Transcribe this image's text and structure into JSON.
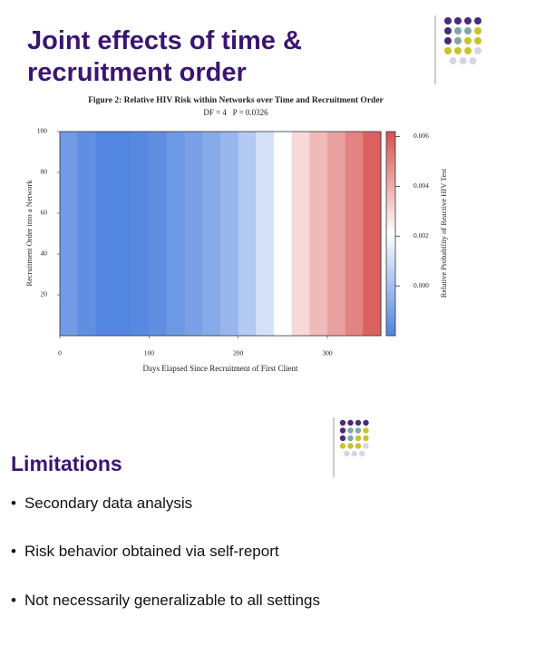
{
  "header": {
    "title": "Joint effects of time & recruitment order"
  },
  "chart_data": {
    "type": "heatmap",
    "title": "Figure 2: Relative HIV Risk within Networks over Time and Recruitment Order",
    "subtitle": "DF = 4   P = 0.0326",
    "x_label": "Days Elapsed Since Recruitment of First Client",
    "y_label": "Recruitment Order into a Network",
    "colorbar_label": "Relative Probability of Reactive HIV Test",
    "x": [
      10,
      30,
      50,
      70,
      90,
      110,
      130,
      150,
      170,
      190,
      210,
      230,
      250,
      270,
      290,
      310,
      330,
      350
    ],
    "values": [
      -0.0012,
      -0.0016,
      -0.0019,
      -0.0019,
      -0.0018,
      -0.0016,
      -0.0013,
      -0.001,
      -0.0007,
      -0.0003,
      0.0003,
      0.0011,
      0.0021,
      0.003,
      0.0037,
      0.0043,
      0.005,
      0.0058
    ],
    "xlim": [
      0,
      360
    ],
    "xticks": [
      0,
      100,
      200,
      300
    ],
    "ylim": [
      0,
      100
    ],
    "yticks": [
      20,
      40,
      60,
      80,
      100
    ],
    "zlim": [
      -0.002,
      0.0062
    ],
    "zticks": [
      {
        "value": 0,
        "label": "0.000"
      },
      {
        "value": 0.002,
        "label": "0.002"
      },
      {
        "value": 0.004,
        "label": "0.004"
      },
      {
        "value": 0.006,
        "label": "0.006"
      }
    ],
    "colormap": [
      "#4f83df",
      "#ffffff",
      "#d6504e"
    ]
  },
  "section": {
    "title": "Limitations",
    "bullets": [
      "Secondary data analysis",
      "Risk behavior obtained via self-report",
      "Not necessarily generalizable to all settings"
    ]
  }
}
